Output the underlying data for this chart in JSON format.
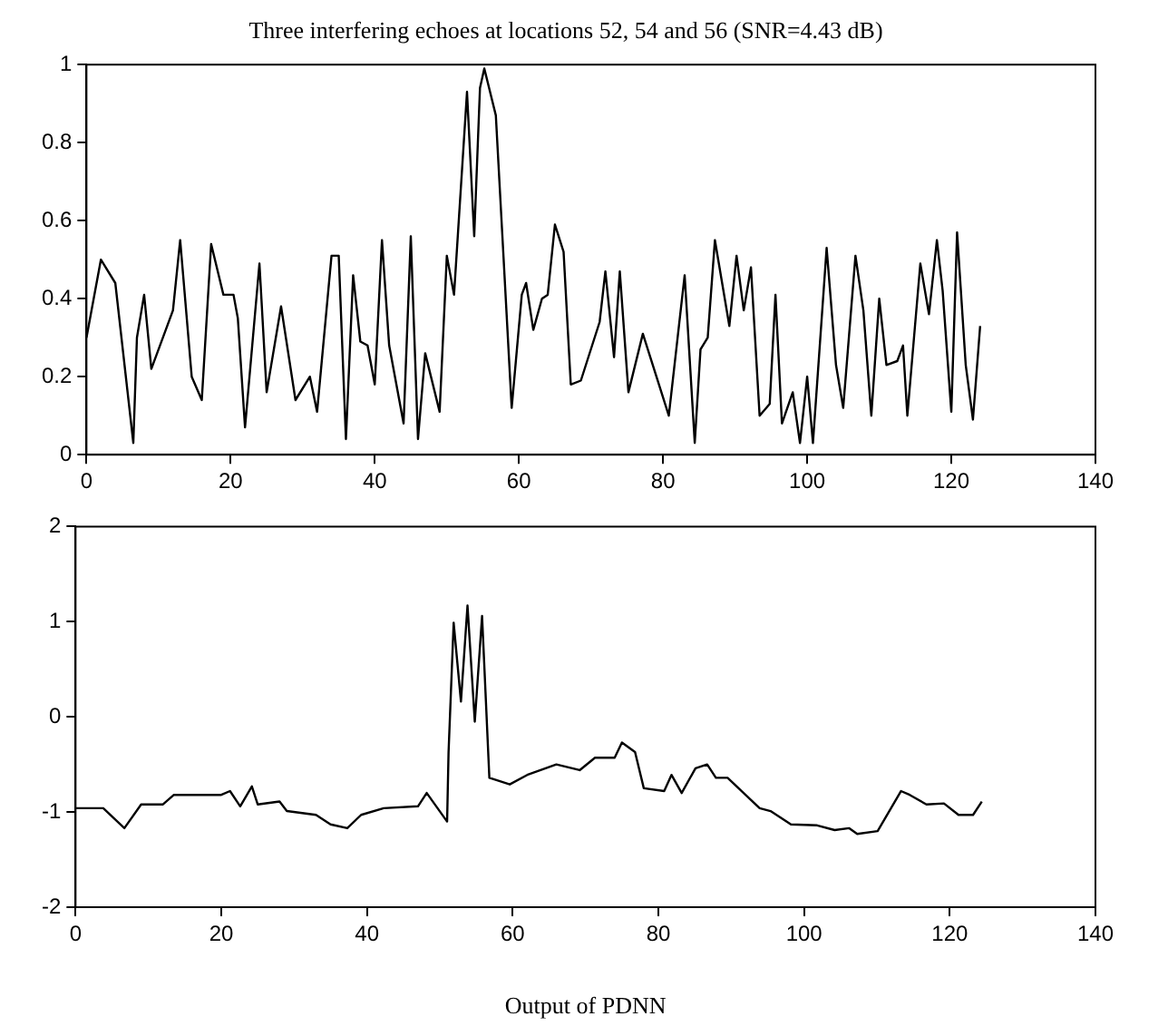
{
  "chart_data": [
    {
      "type": "line",
      "title": "Three interfering echoes at locations 52, 54 and 56 (SNR=4.43 dB)",
      "marker": "none",
      "xlim": [
        0,
        140
      ],
      "xticks": [
        0,
        20,
        40,
        60,
        80,
        100,
        120,
        140
      ],
      "ylim": [
        0,
        1
      ],
      "yticks": [
        0,
        0.2,
        0.4,
        0.6,
        0.8,
        1
      ],
      "series": [
        {
          "color": "#000000",
          "x": [
            0,
            2,
            4,
            6.5,
            7,
            8,
            9,
            12,
            13,
            14.6,
            16,
            17.3,
            19,
            20.4,
            21,
            22,
            24,
            25,
            27,
            29,
            31,
            32,
            34,
            35,
            36,
            37,
            38,
            39,
            40,
            41,
            42,
            44,
            45,
            46,
            47,
            49,
            50,
            51,
            52.8,
            53.8,
            54.6,
            55.2,
            56.8,
            59,
            60.4,
            61,
            62,
            63.2,
            64,
            65,
            66.2,
            67.2,
            68.6,
            71.2,
            72,
            73.2,
            74,
            75.2,
            77.2,
            80.8,
            83,
            84.4,
            85.2,
            86.2,
            87.2,
            89.2,
            90.2,
            91.2,
            92.2,
            93.4,
            94.8,
            95.6,
            96.5,
            98,
            99,
            100,
            100.8,
            102.7,
            104,
            105,
            106.7,
            107.8,
            108.9,
            110,
            111,
            112.5,
            113.3,
            113.9,
            115.7,
            116.9,
            118,
            118.8,
            120,
            120.8,
            122,
            123,
            124
          ],
          "values": [
            0.3,
            0.5,
            0.44,
            0.03,
            0.3,
            0.41,
            0.22,
            0.37,
            0.55,
            0.2,
            0.14,
            0.54,
            0.41,
            0.41,
            0.35,
            0.07,
            0.49,
            0.16,
            0.38,
            0.14,
            0.2,
            0.11,
            0.51,
            0.51,
            0.04,
            0.46,
            0.29,
            0.28,
            0.18,
            0.55,
            0.28,
            0.08,
            0.56,
            0.04,
            0.26,
            0.11,
            0.51,
            0.41,
            0.93,
            0.56,
            0.94,
            0.99,
            0.87,
            0.12,
            0.41,
            0.44,
            0.32,
            0.4,
            0.41,
            0.59,
            0.52,
            0.18,
            0.19,
            0.34,
            0.47,
            0.25,
            0.47,
            0.16,
            0.31,
            0.1,
            0.46,
            0.03,
            0.27,
            0.3,
            0.55,
            0.33,
            0.51,
            0.37,
            0.48,
            0.1,
            0.13,
            0.41,
            0.08,
            0.16,
            0.03,
            0.2,
            0.03,
            0.53,
            0.23,
            0.12,
            0.51,
            0.37,
            0.1,
            0.4,
            0.23,
            0.24,
            0.28,
            0.1,
            0.49,
            0.36,
            0.55,
            0.42,
            0.11,
            0.57,
            0.23,
            0.09,
            0.33
          ]
        }
      ]
    },
    {
      "type": "line",
      "xlabel": "Output of PDNN",
      "marker": "none",
      "xlim": [
        0,
        140
      ],
      "xticks": [
        0,
        20,
        40,
        60,
        80,
        100,
        120,
        140
      ],
      "ylim": [
        -2,
        2
      ],
      "yticks": [
        -2,
        -1,
        0,
        1,
        2
      ],
      "series": [
        {
          "color": "#000000",
          "x": [
            0,
            3.8,
            6.7,
            9,
            12,
            13.5,
            20,
            21.2,
            22.6,
            24.2,
            25,
            28,
            29,
            33,
            35,
            37.3,
            39.2,
            42.3,
            47,
            48.2,
            51,
            51.2,
            51.9,
            52.9,
            53.8,
            54.8,
            55.8,
            56.8,
            59.6,
            62,
            66,
            69.2,
            71.3,
            74,
            75,
            76.8,
            78,
            80.8,
            81.8,
            83.2,
            85.1,
            86.7,
            87.9,
            89.5,
            93.9,
            95.4,
            98.2,
            101.8,
            104.2,
            106.2,
            107.3,
            110.1,
            113.3,
            114.5,
            116.8,
            119.2,
            121.2,
            123.2,
            124.4
          ],
          "values": [
            -0.96,
            -0.96,
            -1.17,
            -0.92,
            -0.92,
            -0.82,
            -0.82,
            -0.78,
            -0.94,
            -0.73,
            -0.92,
            -0.89,
            -0.99,
            -1.03,
            -1.13,
            -1.17,
            -1.03,
            -0.96,
            -0.94,
            -0.8,
            -1.1,
            -0.37,
            0.99,
            0.16,
            1.17,
            -0.05,
            1.06,
            -0.64,
            -0.71,
            -0.61,
            -0.5,
            -0.56,
            -0.43,
            -0.43,
            -0.27,
            -0.37,
            -0.75,
            -0.78,
            -0.61,
            -0.8,
            -0.54,
            -0.5,
            -0.64,
            -0.64,
            -0.96,
            -0.99,
            -1.13,
            -1.14,
            -1.19,
            -1.17,
            -1.23,
            -1.2,
            -0.78,
            -0.82,
            -0.92,
            -0.91,
            -1.03,
            -1.03,
            -0.89
          ]
        }
      ]
    }
  ]
}
